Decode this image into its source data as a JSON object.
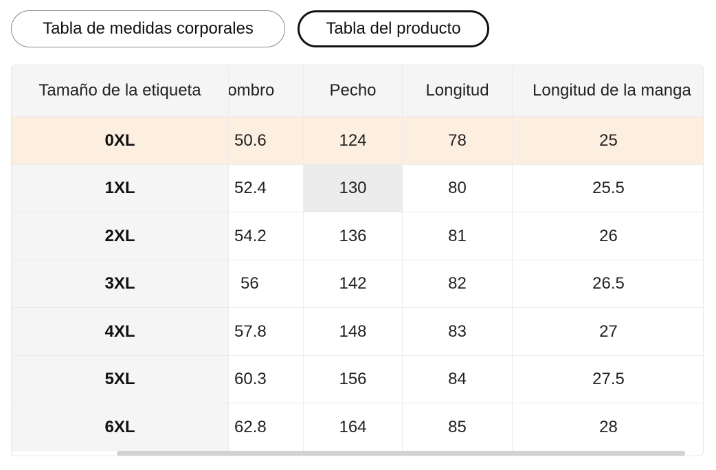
{
  "tabs": {
    "body_measurements": "Tabla de medidas corporales",
    "product": "Tabla del producto"
  },
  "table": {
    "headers": [
      "Tamaño de la etiqueta",
      "Hombro",
      "Pecho",
      "Longitud",
      "Longitud de la manga"
    ],
    "header_visible": {
      "hombro": "lombro",
      "manga": "Longitud de la manga"
    },
    "rows": [
      {
        "size": "0XL",
        "hombro": "50.6",
        "pecho": "124",
        "longitud": "78",
        "manga": "25"
      },
      {
        "size": "1XL",
        "hombro": "52.4",
        "pecho": "130",
        "longitud": "80",
        "manga": "25.5"
      },
      {
        "size": "2XL",
        "hombro": "54.2",
        "pecho": "136",
        "longitud": "81",
        "manga": "26"
      },
      {
        "size": "3XL",
        "hombro": "56",
        "pecho": "142",
        "longitud": "82",
        "manga": "26.5"
      },
      {
        "size": "4XL",
        "hombro": "57.8",
        "pecho": "148",
        "longitud": "83",
        "manga": "27"
      },
      {
        "size": "5XL",
        "hombro": "60.3",
        "pecho": "156",
        "longitud": "84",
        "manga": "27.5"
      },
      {
        "size": "6XL",
        "hombro": "62.8",
        "pecho": "164",
        "longitud": "85",
        "manga": "28"
      }
    ]
  },
  "colors": {
    "highlight_row": "#fdefe0",
    "sticky_column": "#f5f5f5",
    "hover_cell": "#ececec",
    "active_tab_border": "#111111"
  }
}
